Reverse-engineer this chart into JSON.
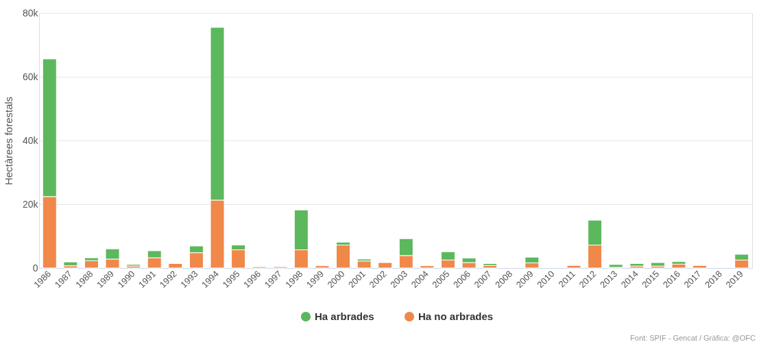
{
  "chart_data": {
    "type": "bar",
    "stacked": true,
    "ylabel": "Hectàrees forestals",
    "categories": [
      "1986",
      "1987",
      "1988",
      "1989",
      "1990",
      "1991",
      "1992",
      "1993",
      "1994",
      "1995",
      "1996",
      "1997",
      "1998",
      "1999",
      "2000",
      "2001",
      "2002",
      "2003",
      "2004",
      "2005",
      "2006",
      "2007",
      "2008",
      "2009",
      "2010",
      "2011",
      "2012",
      "2013",
      "2014",
      "2015",
      "2016",
      "2017",
      "2018",
      "2019"
    ],
    "series": [
      {
        "name": "Ha no arbrades",
        "color": "#f0884a",
        "values": [
          22400,
          700,
          2300,
          2800,
          600,
          3200,
          1400,
          4800,
          21300,
          5700,
          400,
          400,
          5700,
          700,
          7200,
          2200,
          1700,
          3900,
          700,
          2500,
          1700,
          800,
          null,
          1600,
          null,
          800,
          7200,
          200,
          600,
          600,
          1200,
          800,
          null,
          2500
        ]
      },
      {
        "name": "Ha arbrades",
        "color": "#5cb85c",
        "values": [
          43200,
          1200,
          900,
          3200,
          500,
          2200,
          null,
          2100,
          54200,
          1500,
          null,
          null,
          12500,
          null,
          900,
          600,
          null,
          5300,
          null,
          2600,
          1400,
          600,
          null,
          1800,
          null,
          null,
          7800,
          900,
          800,
          1100,
          800,
          null,
          null,
          1800
        ]
      }
    ],
    "ylim": [
      0,
      80000
    ],
    "yticks": [
      {
        "value": 0,
        "label": "0"
      },
      {
        "value": 20000,
        "label": "20k"
      },
      {
        "value": 40000,
        "label": "40k"
      },
      {
        "value": 60000,
        "label": "60k"
      },
      {
        "value": 80000,
        "label": "80k"
      }
    ],
    "grid": "y",
    "legend": "bottom",
    "annotations": [
      "Font: SPIF - Gencat / Gràfica: @OFC"
    ]
  }
}
